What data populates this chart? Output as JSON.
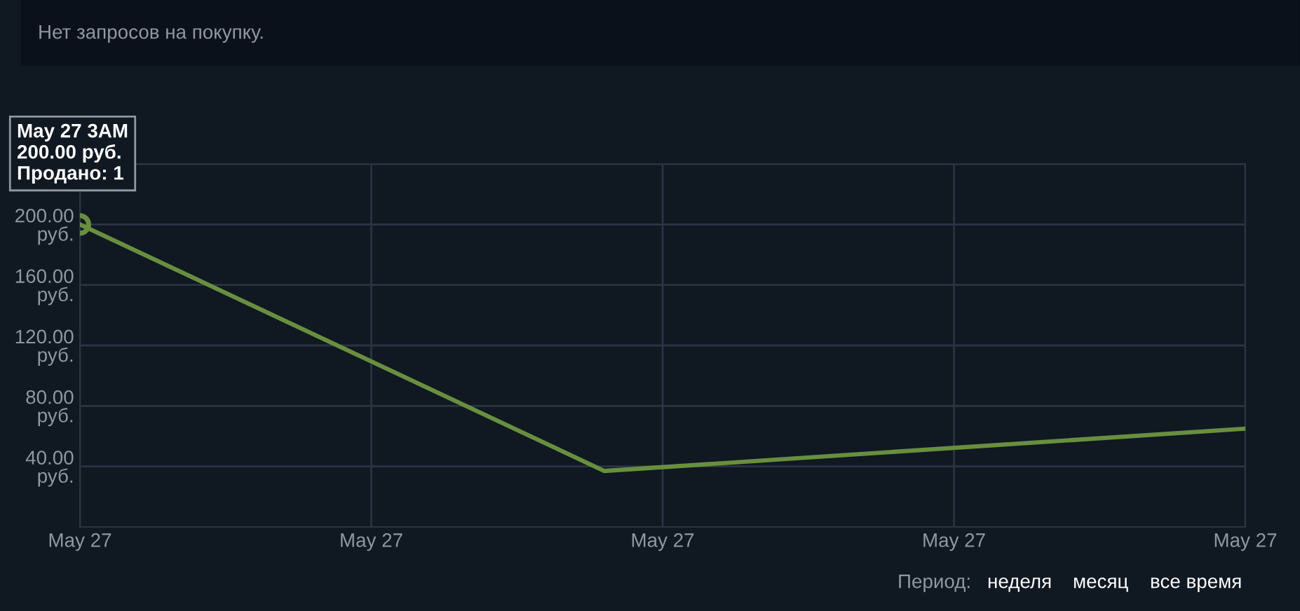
{
  "chart_data": {
    "type": "line",
    "categories": [
      "May 27",
      null,
      null,
      null,
      null,
      "May 27",
      null,
      null,
      null,
      null,
      "May 27",
      null,
      null,
      null,
      null,
      "May 27",
      null,
      null,
      null,
      null,
      "May 27"
    ],
    "series": [
      {
        "color": "#688f3e",
        "values": [
          200,
          null,
          null,
          null,
          null,
          null,
          null,
          null,
          null,
          37,
          null,
          null,
          null,
          null,
          null,
          null,
          null,
          null,
          null,
          null,
          65
        ]
      }
    ],
    "ylim": [
      0,
      240
    ],
    "yticks": [
      {
        "value": 40,
        "label": "40.00\nруб."
      },
      {
        "value": 80,
        "label": "80.00\nруб."
      },
      {
        "value": 120,
        "label": "120.00\nруб."
      },
      {
        "value": 160,
        "label": "160.00\nруб."
      },
      {
        "value": 200,
        "label": "200.00\nруб."
      },
      {
        "value": 240,
        "label": null
      }
    ],
    "grid": true,
    "line_style": "solid",
    "annotations": [
      "May 27 3AM\n200.00 руб.\nПродано: 1",
      "Нет запросов на покупку.",
      "Период:",
      "неделя",
      "месяц",
      "все время"
    ]
  }
}
